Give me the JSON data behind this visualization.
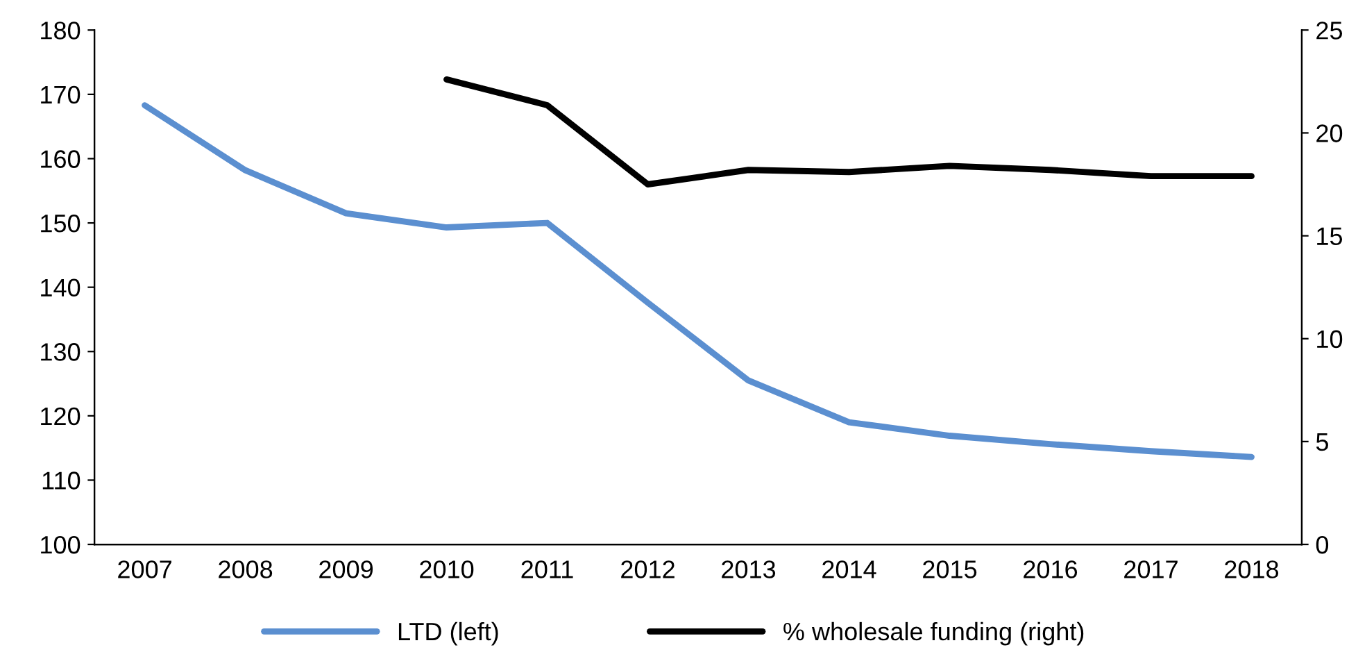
{
  "chart_data": {
    "type": "line",
    "categories": [
      "2007",
      "2008",
      "2009",
      "2010",
      "2011",
      "2012",
      "2013",
      "2014",
      "2015",
      "2016",
      "2017",
      "2018"
    ],
    "series": [
      {
        "name": "LTD (left)",
        "color": "#5b8fd0",
        "values": [
          168.3,
          158.2,
          151.5,
          149.3,
          150,
          137.6,
          125.5,
          119,
          116.9,
          115.6,
          114.5,
          113.6
        ]
      },
      {
        "name": "% wholesale funding (right)",
        "color": "#000000",
        "axis": "y2",
        "values": [
          null,
          null,
          null,
          22.6,
          21.35,
          17.5,
          18.2,
          18.1,
          18.4,
          18.2,
          17.9,
          17.9
        ]
      }
    ],
    "ylim": [
      100,
      180
    ],
    "yticks": [
      100,
      110,
      120,
      130,
      140,
      150,
      160,
      170,
      180
    ],
    "y2lim": [
      0,
      25
    ],
    "y2ticks": [
      0,
      5,
      10,
      15,
      20,
      25
    ],
    "grid": false,
    "legend": "bottom",
    "marker": "none",
    "line_style": "solid"
  }
}
